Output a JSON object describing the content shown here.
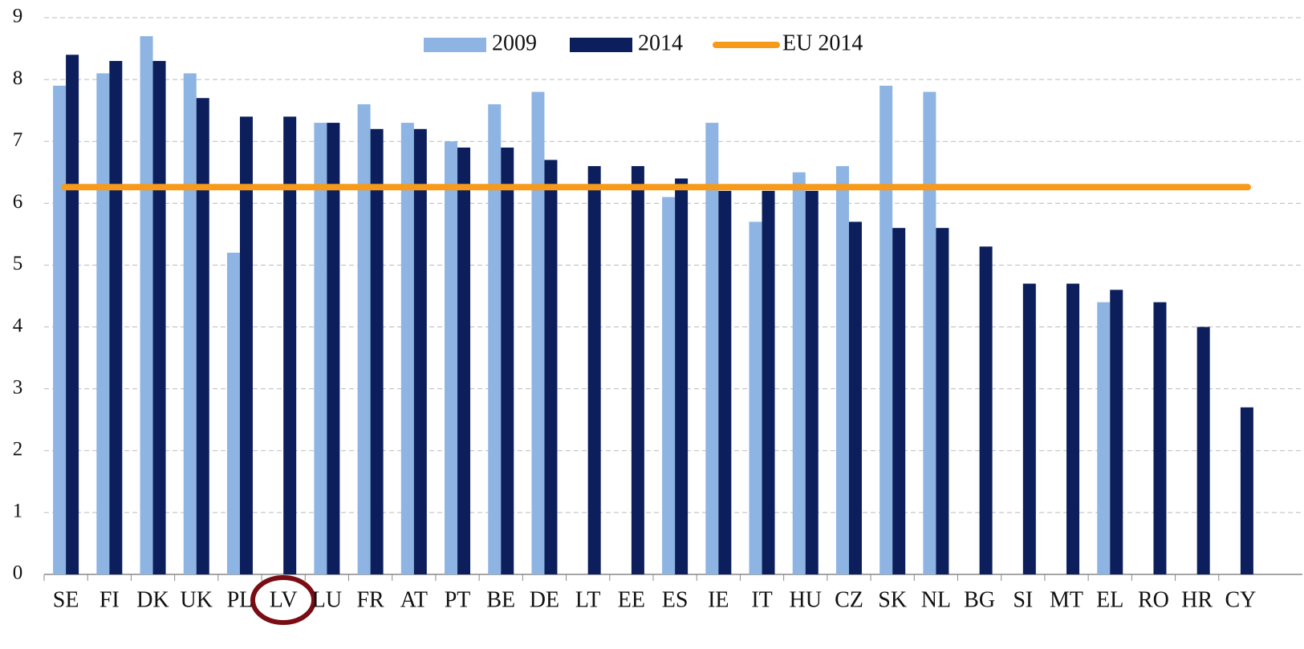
{
  "chart_data": {
    "type": "bar",
    "categories": [
      "SE",
      "FI",
      "DK",
      "UK",
      "PL",
      "LV",
      "LU",
      "FR",
      "AT",
      "PT",
      "BE",
      "DE",
      "LT",
      "EE",
      "ES",
      "IE",
      "IT",
      "HU",
      "CZ",
      "SK",
      "NL",
      "BG",
      "SI",
      "MT",
      "EL",
      "RO",
      "HR",
      "CY"
    ],
    "series": [
      {
        "name": "2009",
        "color": "#8db4e2",
        "values": [
          7.9,
          8.1,
          8.7,
          8.1,
          5.2,
          null,
          7.3,
          7.6,
          7.3,
          7.0,
          7.6,
          7.8,
          null,
          null,
          6.1,
          7.3,
          5.7,
          6.5,
          6.6,
          7.9,
          7.8,
          null,
          null,
          null,
          4.4,
          null,
          null,
          null
        ]
      },
      {
        "name": "2014",
        "color": "#0c1f5c",
        "values": [
          8.4,
          8.3,
          8.3,
          7.7,
          7.4,
          7.4,
          7.3,
          7.2,
          7.2,
          6.9,
          6.9,
          6.7,
          6.6,
          6.6,
          6.4,
          6.2,
          6.2,
          6.2,
          5.7,
          5.6,
          5.6,
          5.3,
          4.7,
          4.7,
          4.6,
          4.4,
          4.0,
          2.7
        ]
      }
    ],
    "reference_line": {
      "name": "EU 2014",
      "value": 6.26,
      "color": "#f79a1a"
    },
    "ylim": [
      0,
      9
    ],
    "yticks": [
      0,
      1,
      2,
      3,
      4,
      5,
      6,
      7,
      8,
      9
    ],
    "grid": true,
    "legend": "top"
  }
}
